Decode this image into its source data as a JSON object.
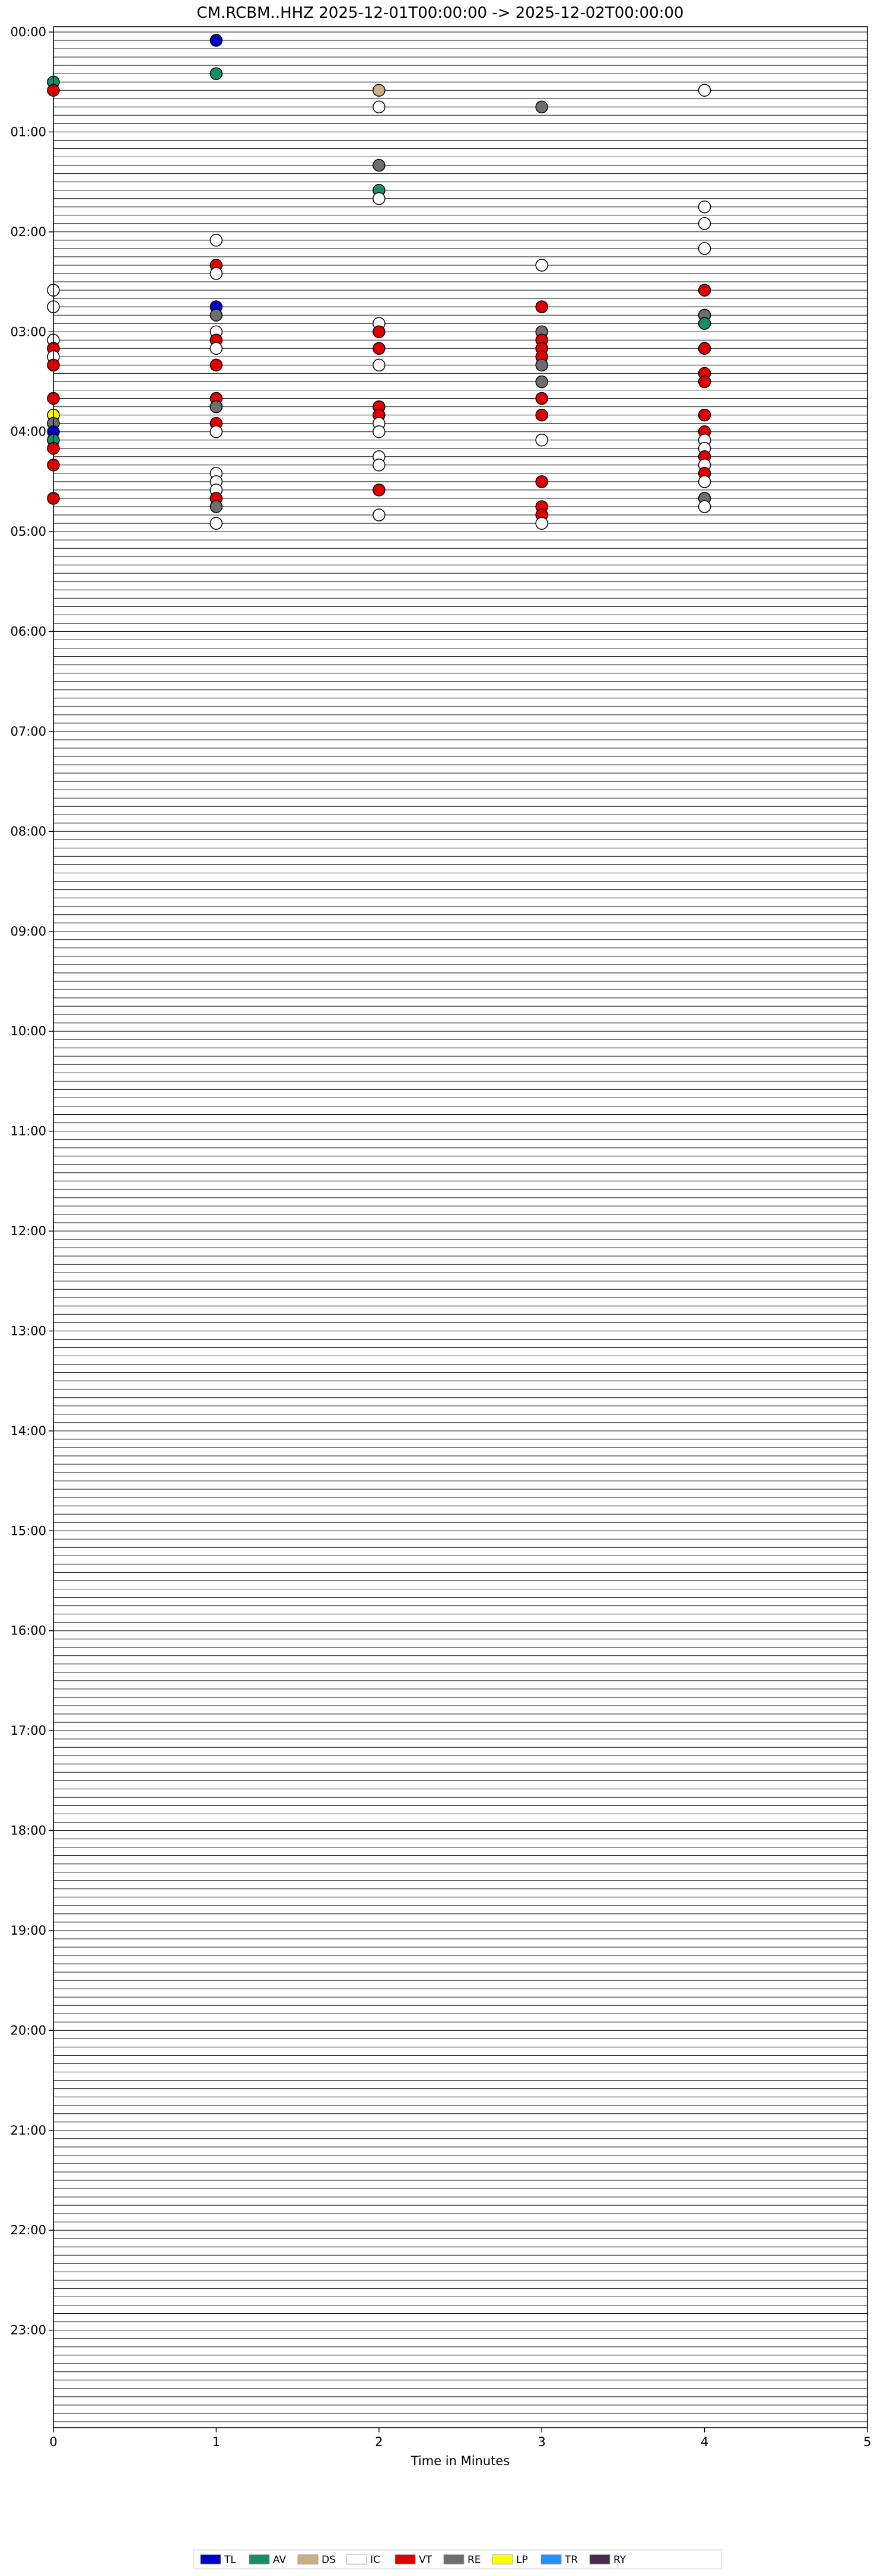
{
  "chart_data": {
    "type": "scatter",
    "title": "CM.RCBM..HHZ  2025-12-01T00:00:00 -> 2025-12-02T00:00:00",
    "xlabel": "Time in Minutes",
    "ylabel": "",
    "xlim": [
      0,
      5
    ],
    "x_ticks": [
      "0",
      "1",
      "2",
      "3",
      "4",
      "5"
    ],
    "y_ticks": [
      "00:00",
      "01:00",
      "02:00",
      "03:00",
      "04:00",
      "05:00",
      "06:00",
      "07:00",
      "08:00",
      "09:00",
      "10:00",
      "11:00",
      "12:00",
      "13:00",
      "14:00",
      "15:00",
      "16:00",
      "17:00",
      "18:00",
      "19:00",
      "20:00",
      "21:00",
      "22:00",
      "23:00"
    ],
    "rows": 288,
    "row_minutes": 5,
    "grid": false,
    "legend_position": "bottom",
    "classes": {
      "TL": "#0000cc",
      "AV": "#1a8c6a",
      "DS": "#c8b080",
      "IC": "#ffffff",
      "VT": "#e00000",
      "RE": "#6e6e6e",
      "LP": "#ffff00",
      "TR": "#1e90ff",
      "RY": "#4a2a50"
    },
    "legend": [
      "TL",
      "AV",
      "DS",
      "IC",
      "VT",
      "RE",
      "LP",
      "TR",
      "RY"
    ],
    "events": [
      {
        "t": "00:06",
        "c": "TL"
      },
      {
        "t": "00:26",
        "c": "AV"
      },
      {
        "t": "00:30",
        "c": "AV"
      },
      {
        "t": "00:35",
        "c": "VT"
      },
      {
        "t": "00:37",
        "c": "DS"
      },
      {
        "t": "00:39",
        "c": "IC"
      },
      {
        "t": "00:47",
        "c": "IC"
      },
      {
        "t": "00:48",
        "c": "RE"
      },
      {
        "t": "01:22",
        "c": "RE"
      },
      {
        "t": "01:37",
        "c": "AV"
      },
      {
        "t": "01:42",
        "c": "IC"
      },
      {
        "t": "01:49",
        "c": "IC"
      },
      {
        "t": "01:59",
        "c": "IC"
      },
      {
        "t": "02:06",
        "c": "IC"
      },
      {
        "t": "02:14",
        "c": "IC"
      },
      {
        "t": "02:21",
        "c": "VT"
      },
      {
        "t": "02:23",
        "c": "IC"
      },
      {
        "t": "02:26",
        "c": "IC"
      },
      {
        "t": "02:35",
        "c": "IC"
      },
      {
        "t": "02:39",
        "c": "VT"
      },
      {
        "t": "02:45",
        "c": "IC"
      },
      {
        "t": "02:46",
        "c": "TL"
      },
      {
        "t": "02:48",
        "c": "VT"
      },
      {
        "t": "02:51",
        "c": "RE"
      },
      {
        "t": "02:54",
        "c": "RE"
      },
      {
        "t": "02:57",
        "c": "IC"
      },
      {
        "t": "02:59",
        "c": "AV"
      },
      {
        "t": "03:01",
        "c": "IC"
      },
      {
        "t": "03:02",
        "c": "VT"
      },
      {
        "t": "03:03",
        "c": "RE"
      },
      {
        "t": "03:05",
        "c": "IC"
      },
      {
        "t": "03:06",
        "c": "VT"
      },
      {
        "t": "03:08",
        "c": "VT"
      },
      {
        "t": "03:10",
        "c": "VT"
      },
      {
        "t": "03:10",
        "c": "VT"
      },
      {
        "t": "03:11",
        "c": "IC"
      },
      {
        "t": "03:12",
        "c": "VT"
      },
      {
        "t": "03:13",
        "c": "VT"
      },
      {
        "t": "03:13",
        "c": "VT"
      },
      {
        "t": "03:14",
        "c": "VT"
      },
      {
        "t": "03:15",
        "c": "IC"
      },
      {
        "t": "03:18",
        "c": "VT"
      },
      {
        "t": "03:20",
        "c": "VT"
      },
      {
        "t": "03:21",
        "c": "VT"
      },
      {
        "t": "03:22",
        "c": "IC"
      },
      {
        "t": "03:23",
        "c": "RE"
      },
      {
        "t": "03:29",
        "c": "VT"
      },
      {
        "t": "03:33",
        "c": "RE"
      },
      {
        "t": "03:34",
        "c": "VT"
      },
      {
        "t": "03:40",
        "c": "VT"
      },
      {
        "t": "03:41",
        "c": "VT"
      },
      {
        "t": "03:43",
        "c": "VT"
      },
      {
        "t": "03:46",
        "c": "VT"
      },
      {
        "t": "03:46",
        "c": "RE"
      },
      {
        "t": "03:47",
        "c": "VT"
      },
      {
        "t": "03:50",
        "c": "LP"
      },
      {
        "t": "03:52",
        "c": "VT"
      },
      {
        "t": "03:53",
        "c": "VT"
      },
      {
        "t": "03:54",
        "c": "VT"
      },
      {
        "t": "03:55",
        "c": "RE"
      },
      {
        "t": "03:56",
        "c": "VT"
      },
      {
        "t": "03:57",
        "c": "IC"
      },
      {
        "t": "04:00",
        "c": "TL"
      },
      {
        "t": "04:01",
        "c": "IC"
      },
      {
        "t": "04:02",
        "c": "IC"
      },
      {
        "t": "04:04",
        "c": "VT"
      },
      {
        "t": "04:05",
        "c": "AV"
      },
      {
        "t": "04:08",
        "c": "IC"
      },
      {
        "t": "04:09",
        "c": "IC"
      },
      {
        "t": "04:10",
        "c": "VT"
      },
      {
        "t": "04:14",
        "c": "IC"
      },
      {
        "t": "04:17",
        "c": "IC"
      },
      {
        "t": "04:19",
        "c": "VT"
      },
      {
        "t": "04:20",
        "c": "VT"
      },
      {
        "t": "04:22",
        "c": "IC"
      },
      {
        "t": "04:24",
        "c": "IC"
      },
      {
        "t": "04:26",
        "c": "IC"
      },
      {
        "t": "04:29",
        "c": "VT"
      },
      {
        "t": "04:31",
        "c": "IC"
      },
      {
        "t": "04:33",
        "c": "VT"
      },
      {
        "t": "04:34",
        "c": "IC"
      },
      {
        "t": "04:36",
        "c": "IC"
      },
      {
        "t": "04:37",
        "c": "VT"
      },
      {
        "t": "04:40",
        "c": "VT"
      },
      {
        "t": "04:41",
        "c": "VT"
      },
      {
        "t": "04:44",
        "c": "RE"
      },
      {
        "t": "04:46",
        "c": "RE"
      },
      {
        "t": "04:48",
        "c": "VT"
      },
      {
        "t": "04:49",
        "c": "IC"
      },
      {
        "t": "04:52",
        "c": "IC"
      },
      {
        "t": "04:53",
        "c": "VT"
      },
      {
        "t": "04:56",
        "c": "IC"
      },
      {
        "t": "04:58",
        "c": "IC"
      }
    ]
  }
}
